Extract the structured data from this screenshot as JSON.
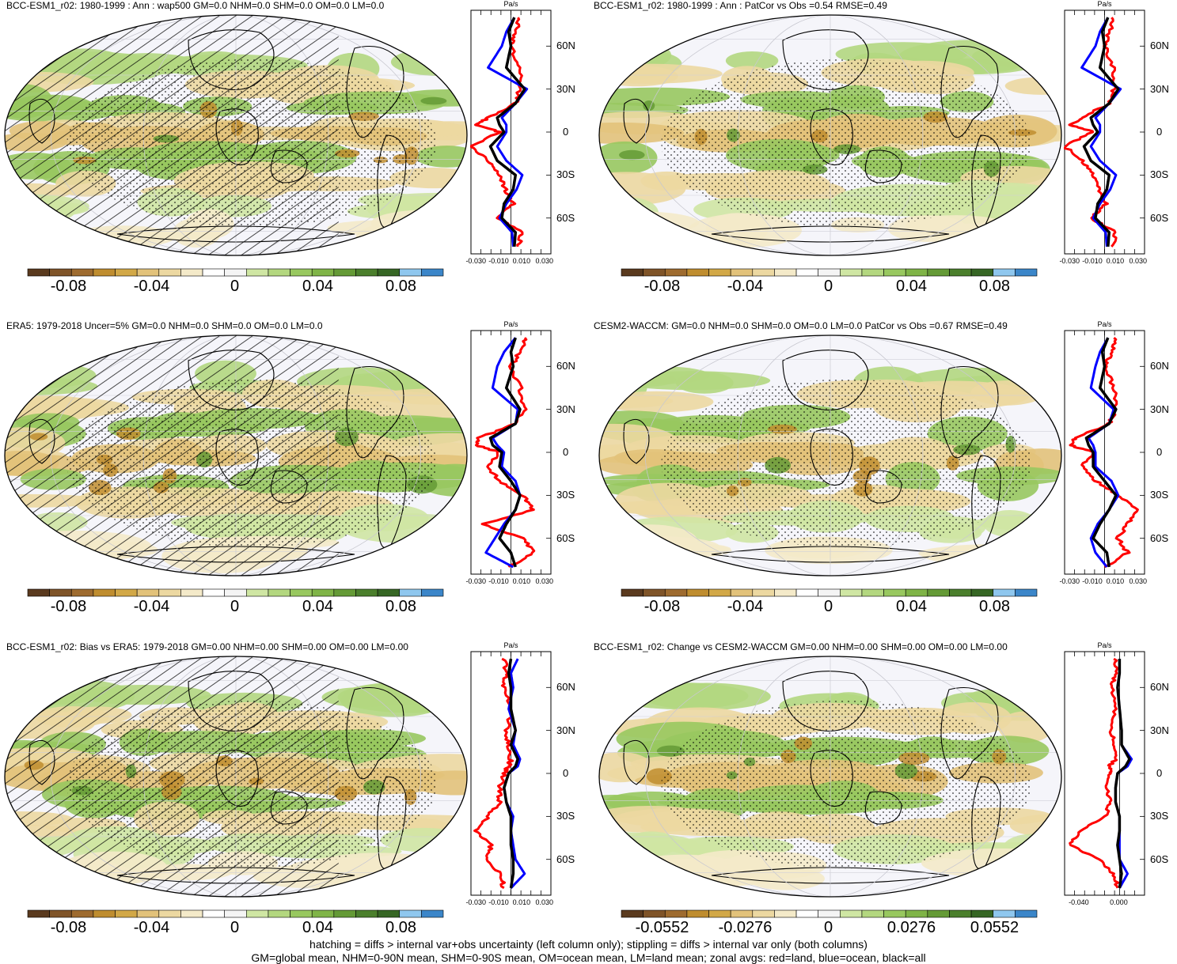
{
  "panels": [
    {
      "title": "BCC-ESM1_r02: 1980-1999 : Ann : wap500 GM=0.0 NHM=0.0 SHM=0.0 OM=0.0 LM=0.0",
      "cbar_ticks": [
        "-0.08",
        "-0.04",
        "0",
        "0.04",
        "0.08"
      ],
      "zonal_ticks": [
        "-0.030",
        "-0.010",
        "0.010",
        "0.030"
      ],
      "hatch": true
    },
    {
      "title": "BCC-ESM1_r02: 1980-1999 : Ann : PatCor vs Obs =0.54 RMSE=0.49",
      "cbar_ticks": [
        "-0.08",
        "-0.04",
        "0",
        "0.04",
        "0.08"
      ],
      "zonal_ticks": [
        "-0.030",
        "-0.010",
        "0.010",
        "0.030"
      ],
      "hatch": false
    },
    {
      "title": "ERA5: 1979-2018 Uncer=5% GM=0.0 NHM=0.0 SHM=0.0 OM=0.0 LM=0.0",
      "cbar_ticks": [
        "-0.08",
        "-0.04",
        "0",
        "0.04",
        "0.08"
      ],
      "zonal_ticks": [
        "-0.030",
        "-0.010",
        "0.010",
        "0.030"
      ],
      "hatch": true
    },
    {
      "title": "CESM2-WACCM: GM=0.0 NHM=0.0 SHM=0.0 OM=0.0 LM=0.0 PatCor vs Obs =0.67 RMSE=0.49",
      "cbar_ticks": [
        "-0.08",
        "-0.04",
        "0",
        "0.04",
        "0.08"
      ],
      "zonal_ticks": [
        "-0.030",
        "-0.010",
        "0.010",
        "0.030"
      ],
      "hatch": false
    },
    {
      "title": "BCC-ESM1_r02: Bias vs ERA5: 1979-2018 GM=0.00 NHM=0.00 SHM=0.00 OM=0.00 LM=0.00",
      "cbar_ticks": [
        "-0.08",
        "-0.04",
        "0",
        "0.04",
        "0.08"
      ],
      "zonal_ticks": [
        "-0.030",
        "-0.010",
        "0.010",
        "0.030"
      ],
      "hatch": true
    },
    {
      "title": "BCC-ESM1_r02: Change vs CESM2-WACCM GM=0.00 NHM=0.00 SHM=0.00 OM=0.00 LM=0.00",
      "cbar_ticks": [
        "-0.0552",
        "-0.0276",
        "0",
        "0.0276",
        "0.0552"
      ],
      "zonal_ticks": [
        "-0.040",
        "0.000"
      ],
      "hatch": false
    }
  ],
  "zonal_unit": "Pa/s",
  "lat_labels": [
    "60N",
    "30N",
    "0",
    "30S",
    "60S"
  ],
  "colorbar_colors": [
    "#5a3a1e",
    "#7f5428",
    "#9e6b2f",
    "#bf8d2f",
    "#d2a847",
    "#e2c27a",
    "#ecd8a1",
    "#f4eac9",
    "#ffffff",
    "#f4f4f4",
    "#cfe6a3",
    "#b3d77f",
    "#98c85f",
    "#7fb447",
    "#649a36",
    "#4b7f2c",
    "#366624",
    "#8fc7ee",
    "#3b86c9"
  ],
  "line_colors": {
    "land": "#ff0000",
    "ocean": "#0000ff",
    "all": "#000000"
  },
  "footer": {
    "line1": "hatching = diffs > internal var+obs uncertainty (left column only); stippling = diffs > internal var only (both columns)",
    "line2": "GM=global mean, NHM=0-90N mean, SHM=0-90S mean, OM=ocean mean, LM=land mean; zonal avgs: red=land, blue=ocean, black=all"
  },
  "chart_data": [
    {
      "type": "heatmap",
      "title": "BCC-ESM1_r02: 1980-1999 : Ann : wap500 GM=0.0 NHM=0.0 SHM=0.0 OM=0.0 LM=0.0",
      "colorbar": {
        "ticks": [
          -0.08,
          -0.04,
          0,
          0.04,
          0.08
        ],
        "range": [
          -0.1,
          0.1
        ]
      },
      "zonal_mean": {
        "xlim": [
          -0.035,
          0.035
        ],
        "lat": [
          80,
          70,
          60,
          45,
          30,
          20,
          10,
          5,
          0,
          -10,
          -20,
          -30,
          -40,
          -50,
          -60,
          -70,
          -80
        ],
        "all": [
          0.003,
          -0.002,
          0.0,
          -0.004,
          0.012,
          0.004,
          -0.012,
          -0.01,
          -0.006,
          -0.018,
          -0.012,
          0.004,
          0.002,
          -0.006,
          -0.008,
          0.004,
          0.003
        ],
        "ocean": [
          0.003,
          -0.004,
          -0.008,
          -0.02,
          0.014,
          0.004,
          -0.008,
          -0.004,
          -0.004,
          -0.012,
          -0.004,
          0.01,
          0.005,
          -0.004,
          -0.01,
          0.001,
          0.002
        ],
        "land": [
          0.008,
          0.004,
          0.0,
          0.008,
          0.008,
          0.004,
          -0.02,
          -0.03,
          -0.01,
          -0.035,
          -0.02,
          -0.01,
          -0.005,
          0.002,
          -0.012,
          0.01,
          0.006
        ]
      }
    },
    {
      "type": "heatmap",
      "title": "BCC-ESM1_r02: 1980-1999 : Ann : PatCor vs Obs =0.54 RMSE=0.49",
      "colorbar": {
        "ticks": [
          -0.08,
          -0.04,
          0,
          0.04,
          0.08
        ],
        "range": [
          -0.1,
          0.1
        ]
      },
      "zonal_mean": {
        "xlim": [
          -0.035,
          0.035
        ],
        "lat": [
          80,
          70,
          60,
          45,
          30,
          20,
          10,
          5,
          0,
          -10,
          -20,
          -30,
          -40,
          -50,
          -60,
          -70,
          -80
        ],
        "all": [
          0.003,
          -0.002,
          0.0,
          -0.004,
          0.012,
          0.004,
          -0.012,
          -0.01,
          -0.006,
          -0.018,
          -0.012,
          0.004,
          0.002,
          -0.006,
          -0.008,
          0.004,
          0.003
        ],
        "ocean": [
          0.003,
          -0.004,
          -0.008,
          -0.02,
          0.014,
          0.004,
          -0.008,
          -0.004,
          -0.004,
          -0.012,
          -0.004,
          0.01,
          0.005,
          -0.004,
          -0.01,
          0.001,
          0.002
        ],
        "land": [
          0.008,
          0.004,
          0.0,
          0.008,
          0.008,
          0.004,
          -0.02,
          -0.03,
          -0.01,
          -0.035,
          -0.02,
          -0.01,
          -0.005,
          0.002,
          -0.012,
          0.01,
          0.006
        ]
      }
    },
    {
      "type": "heatmap",
      "title": "ERA5: 1979-2018 Uncer=5% GM=0.0 NHM=0.0 SHM=0.0 OM=0.0 LM=0.0",
      "colorbar": {
        "ticks": [
          -0.08,
          -0.04,
          0,
          0.04,
          0.08
        ],
        "range": [
          -0.1,
          0.1
        ]
      },
      "zonal_mean": {
        "xlim": [
          -0.035,
          0.035
        ],
        "lat": [
          80,
          70,
          60,
          45,
          30,
          20,
          10,
          5,
          0,
          -10,
          -20,
          -30,
          -40,
          -50,
          -60,
          -70,
          -80
        ],
        "all": [
          0.004,
          0.0,
          0.002,
          -0.004,
          0.008,
          0.004,
          -0.018,
          -0.016,
          -0.008,
          -0.01,
          0.0,
          0.008,
          0.004,
          -0.004,
          -0.01,
          0.0,
          0.004
        ],
        "ocean": [
          0.004,
          -0.006,
          -0.012,
          -0.016,
          0.006,
          0.004,
          -0.016,
          -0.012,
          -0.006,
          -0.008,
          0.004,
          0.008,
          0.004,
          -0.006,
          -0.014,
          -0.022,
          0.002
        ],
        "land": [
          0.014,
          0.008,
          0.0,
          0.008,
          0.012,
          0.004,
          -0.028,
          -0.03,
          -0.01,
          -0.02,
          -0.01,
          0.01,
          0.02,
          -0.025,
          0.01,
          0.02,
          -0.002
        ]
      }
    },
    {
      "type": "heatmap",
      "title": "CESM2-WACCM: GM=0.0 NHM=0.0 SHM=0.0 OM=0.0 LM=0.0 PatCor vs Obs =0.67 RMSE=0.49",
      "colorbar": {
        "ticks": [
          -0.08,
          -0.04,
          0,
          0.04,
          0.08
        ],
        "range": [
          -0.1,
          0.1
        ]
      },
      "zonal_mean": {
        "xlim": [
          -0.035,
          0.035
        ],
        "lat": [
          80,
          70,
          60,
          45,
          30,
          20,
          10,
          5,
          0,
          -10,
          -20,
          -30,
          -40,
          -50,
          -60,
          -70,
          -80
        ],
        "all": [
          0.003,
          -0.002,
          0.0,
          -0.004,
          0.01,
          0.004,
          -0.016,
          -0.014,
          -0.01,
          -0.01,
          0.0,
          0.01,
          0.004,
          -0.004,
          -0.01,
          0.002,
          0.004
        ],
        "ocean": [
          0.003,
          -0.004,
          -0.008,
          -0.012,
          0.008,
          0.004,
          -0.014,
          -0.01,
          -0.008,
          -0.008,
          0.006,
          0.012,
          0.004,
          -0.006,
          -0.012,
          -0.008,
          0.002
        ],
        "land": [
          0.01,
          0.006,
          0.0,
          0.008,
          0.01,
          0.004,
          -0.026,
          -0.03,
          -0.01,
          -0.02,
          -0.008,
          0.012,
          0.03,
          0.02,
          0.012,
          0.02,
          0.0
        ]
      }
    },
    {
      "type": "heatmap",
      "title": "BCC-ESM1_r02: Bias vs ERA5: 1979-2018 GM=0.00 NHM=0.00 SHM=0.00 OM=0.00 LM=0.00",
      "colorbar": {
        "ticks": [
          -0.08,
          -0.04,
          0,
          0.04,
          0.08
        ],
        "range": [
          -0.1,
          0.1
        ]
      },
      "zonal_mean": {
        "xlim": [
          -0.035,
          0.035
        ],
        "lat": [
          80,
          70,
          60,
          45,
          30,
          20,
          10,
          5,
          0,
          -10,
          -20,
          -30,
          -40,
          -50,
          -60,
          -70,
          -80
        ],
        "all": [
          0.0,
          -0.002,
          0.0,
          0.0,
          0.004,
          0.0,
          0.006,
          0.004,
          -0.002,
          -0.006,
          -0.004,
          0.0,
          0.0,
          0.0,
          0.002,
          0.002,
          0.0
        ],
        "ocean": [
          0.006,
          0.0,
          0.002,
          -0.002,
          0.004,
          0.002,
          0.008,
          0.006,
          -0.002,
          -0.006,
          -0.004,
          0.002,
          0.0,
          0.002,
          0.004,
          0.012,
          0.0
        ],
        "land": [
          -0.006,
          -0.004,
          -0.006,
          0.0,
          -0.004,
          -0.002,
          0.0,
          -0.002,
          -0.006,
          -0.01,
          -0.01,
          -0.02,
          -0.03,
          -0.018,
          -0.02,
          -0.01,
          -0.006
        ]
      }
    },
    {
      "type": "heatmap",
      "title": "BCC-ESM1_r02: Change vs CESM2-WACCM GM=0.00 NHM=0.00 SHM=0.00 OM=0.00 LM=0.00",
      "colorbar": {
        "ticks": [
          -0.0552,
          -0.0276,
          0,
          0.0276,
          0.0552
        ],
        "range": [
          -0.069,
          0.069
        ]
      },
      "zonal_mean": {
        "xlim": [
          -0.055,
          0.025
        ],
        "lat": [
          80,
          70,
          60,
          45,
          30,
          20,
          10,
          5,
          0,
          -10,
          -20,
          -30,
          -40,
          -50,
          -60,
          -70,
          -80
        ],
        "all": [
          0.0,
          0.0,
          -0.002,
          0.0,
          0.002,
          0.002,
          0.01,
          0.006,
          -0.002,
          -0.004,
          -0.004,
          0.0,
          0.0,
          -0.002,
          0.0,
          0.002,
          0.0
        ],
        "ocean": [
          0.0,
          0.0,
          -0.002,
          0.0,
          0.002,
          0.002,
          0.012,
          0.008,
          -0.002,
          -0.004,
          -0.004,
          0.0,
          0.0,
          0.0,
          0.0,
          0.008,
          0.0
        ],
        "land": [
          -0.004,
          -0.004,
          -0.008,
          -0.004,
          -0.008,
          -0.006,
          -0.004,
          -0.01,
          -0.01,
          -0.012,
          -0.01,
          -0.014,
          -0.04,
          -0.05,
          -0.02,
          -0.006,
          -0.002
        ]
      }
    }
  ]
}
